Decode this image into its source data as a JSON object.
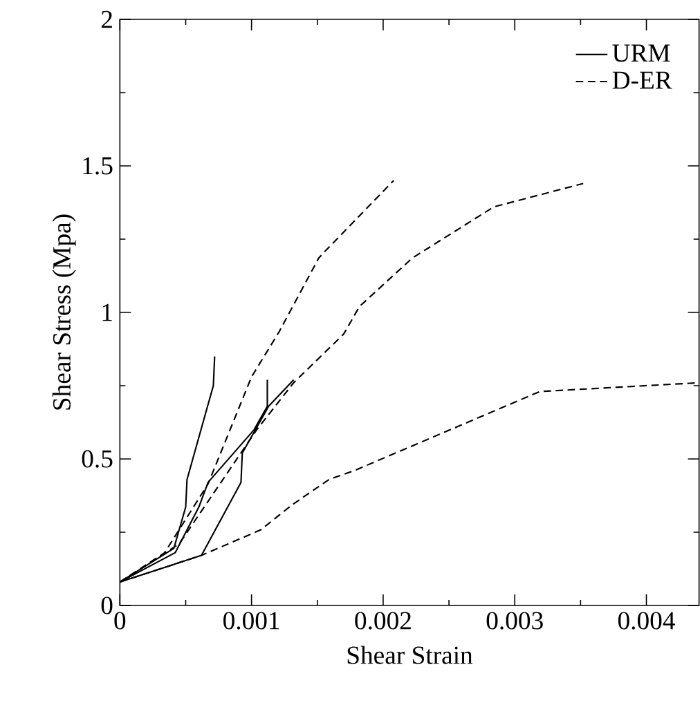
{
  "chart_data": {
    "type": "line",
    "xlabel": "Shear Strain",
    "ylabel": "Shear Stress (Mpa)",
    "xlim": [
      0,
      0.0044
    ],
    "ylim": [
      0,
      2
    ],
    "xticks": [
      0,
      0.001,
      0.002,
      0.003,
      0.004
    ],
    "yticks": [
      0,
      0.5,
      1,
      1.5,
      2
    ],
    "legend": "top right",
    "marker": "none",
    "grid": false,
    "series": [
      {
        "name": "URM",
        "color": "#000000",
        "line_style": "solid",
        "x": [
          0,
          0.00041,
          0.0005,
          0.00051,
          0.00071,
          0.00072
        ],
        "values": [
          0.08,
          0.195,
          0.336,
          0.43,
          0.75,
          0.85
        ]
      },
      {
        "color": "#000000",
        "line_style": "solid",
        "x": [
          0,
          0.00062,
          0.00092,
          0.00093,
          0.00113,
          0.00132
        ],
        "values": [
          0.08,
          0.171,
          0.42,
          0.52,
          0.68,
          0.77
        ]
      },
      {
        "color": "#000000",
        "line_style": "solid",
        "x": [
          0,
          0.00042,
          0.0006,
          0.00067,
          0.00102,
          0.00112,
          0.00112
        ],
        "values": [
          0.08,
          0.18,
          0.336,
          0.42,
          0.6,
          0.68,
          0.77
        ]
      },
      {
        "name": "D-ER",
        "color": "#000000",
        "line_style": "dashed",
        "x": [
          0,
          0.00034,
          0.00067,
          0.001,
          0.00121,
          0.00151,
          0.00154,
          0.00208
        ],
        "values": [
          0.08,
          0.18,
          0.415,
          0.78,
          0.934,
          1.185,
          1.2,
          1.45
        ]
      },
      {
        "color": "#000000",
        "line_style": "dashed",
        "x": [
          0,
          0.00045,
          0.00104,
          0.00132,
          0.0017,
          0.00182,
          0.00222,
          0.00284,
          0.00352
        ],
        "values": [
          0.08,
          0.21,
          0.6,
          0.76,
          0.926,
          1.02,
          1.185,
          1.36,
          1.44
        ]
      },
      {
        "color": "#000000",
        "line_style": "dashed",
        "x": [
          0,
          0.00062,
          0.00107,
          0.00131,
          0.00159,
          0.00178,
          0.00319,
          0.0044
        ],
        "values": [
          0.08,
          0.171,
          0.258,
          0.344,
          0.43,
          0.46,
          0.73,
          0.76
        ]
      }
    ]
  }
}
